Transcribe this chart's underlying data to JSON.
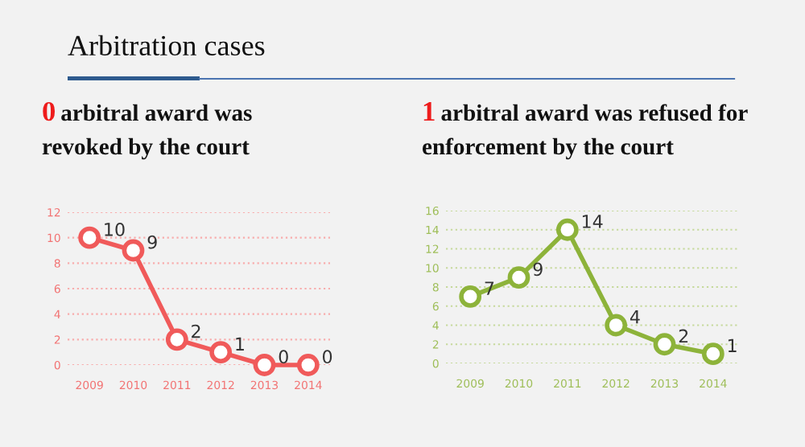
{
  "chart_data": [
    {
      "type": "line",
      "title": "Arbitration cases",
      "subtitle": "0 arbitral award was\nrevoked by the court",
      "categories": [
        "2009",
        "2010",
        "2011",
        "2012",
        "2013",
        "2014"
      ],
      "series": [
        {
          "color": "#f05a5a",
          "values": [
            10,
            9,
            2,
            1,
            0,
            0
          ]
        }
      ],
      "ylim": [
        0,
        12
      ],
      "yticks": [
        0,
        2,
        4,
        6,
        8,
        10,
        12
      ],
      "grid": "y",
      "marker": "circle",
      "line_style": "solid",
      "data_labels": true,
      "legend": false
    },
    {
      "type": "line",
      "subtitle": "1 arbitral award was refused for\nenforcement by the court",
      "categories": [
        "2009",
        "2010",
        "2011",
        "2012",
        "2013",
        "2014"
      ],
      "series": [
        {
          "color": "#8db33a",
          "values": [
            7,
            9,
            14,
            4,
            2,
            1
          ]
        }
      ],
      "ylim": [
        0,
        16
      ],
      "yticks": [
        0,
        2,
        4,
        6,
        8,
        10,
        12,
        14,
        16
      ],
      "grid": "y",
      "marker": "circle",
      "line_style": "solid",
      "data_labels": true,
      "legend": false
    }
  ]
}
